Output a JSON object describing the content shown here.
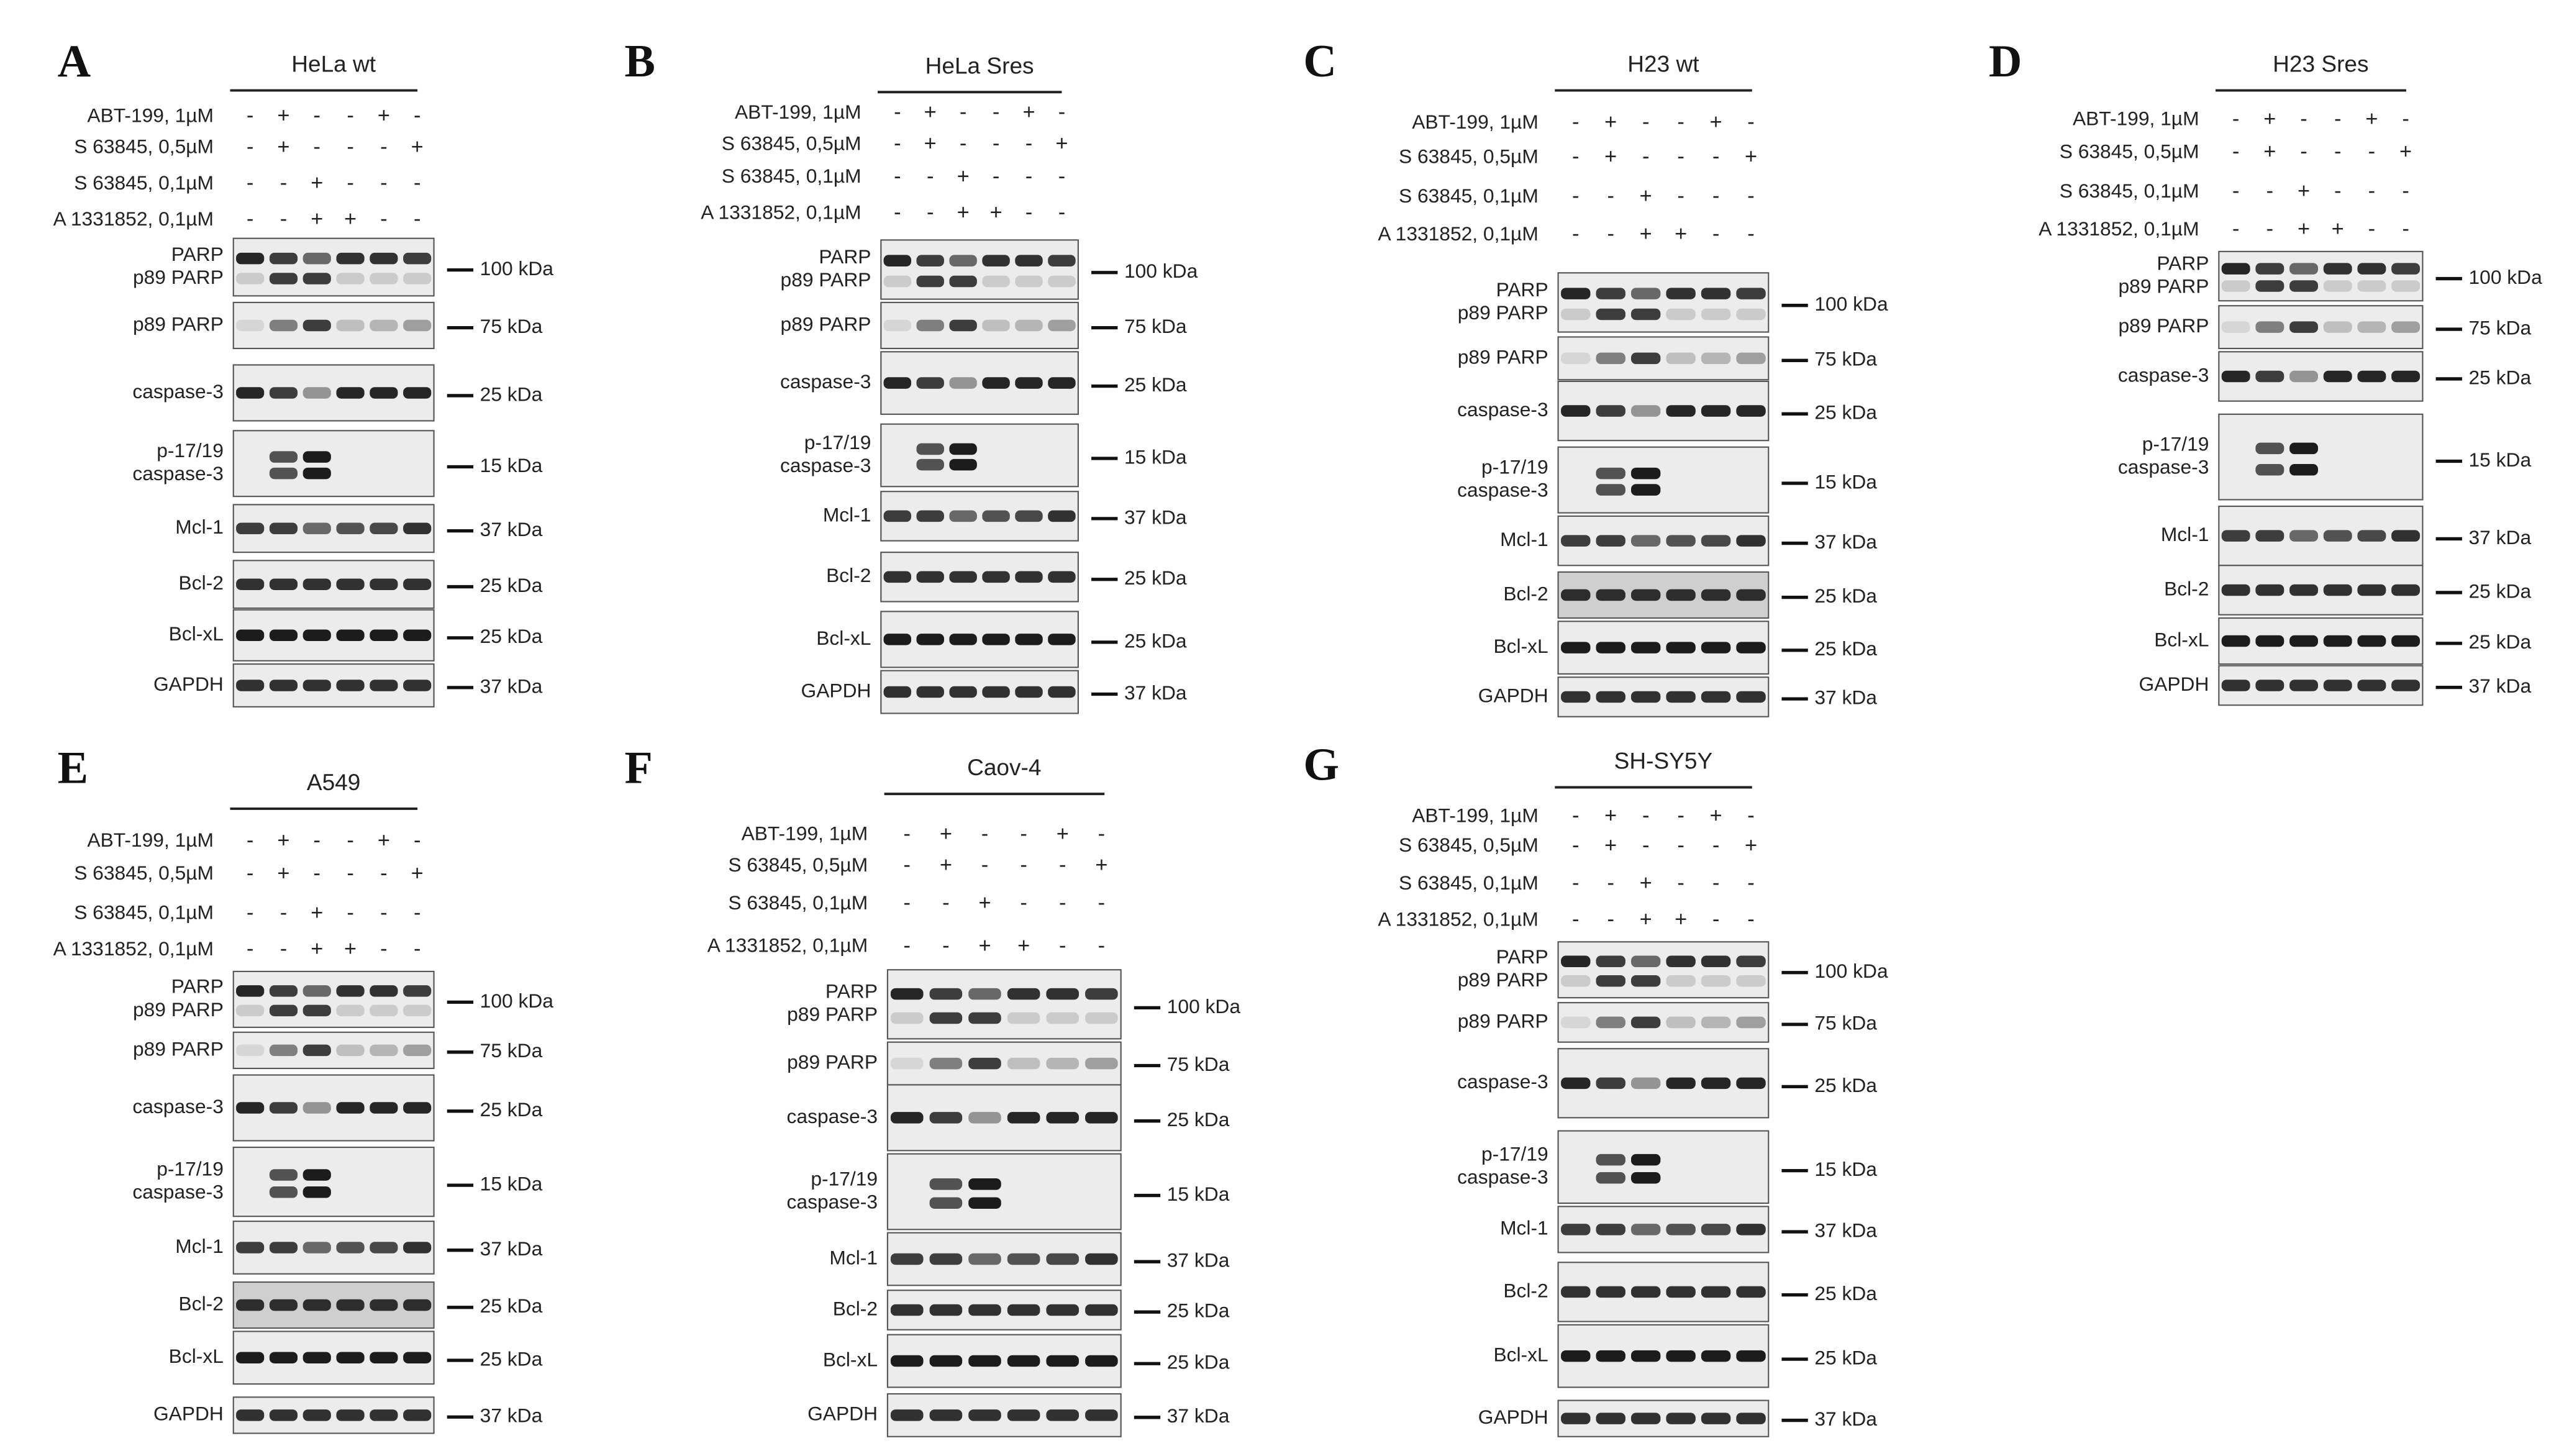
{
  "panels": [
    {
      "letter": "A",
      "title": "HeLa wt",
      "treatments": [
        {
          "label": "ABT-199, 1µM",
          "signs": [
            "-",
            "+",
            "-",
            "-",
            "+",
            "-"
          ]
        },
        {
          "label": "S 63845, 0,5µM",
          "signs": [
            "-",
            "+",
            "-",
            "-",
            "-",
            "+"
          ]
        },
        {
          "label": "S 63845, 0,1µM",
          "signs": [
            "-",
            "-",
            "+",
            "-",
            "-",
            "-"
          ]
        },
        {
          "label": "A 1331852, 0,1µM",
          "signs": [
            "-",
            "-",
            "+",
            "+",
            "-",
            "-"
          ]
        }
      ],
      "blots": [
        {
          "labels": [
            "PARP",
            "p89 PARP"
          ],
          "marker": "100 kDa"
        },
        {
          "labels": [
            "p89 PARP"
          ],
          "marker": "75 kDa"
        },
        {
          "labels": [
            "caspase-3"
          ],
          "marker": "25 kDa"
        },
        {
          "labels": [
            "p-17/19",
            "caspase-3"
          ],
          "marker": "15 kDa"
        },
        {
          "labels": [
            "Mcl-1"
          ],
          "marker": "37 kDa"
        },
        {
          "labels": [
            "Bcl-2"
          ],
          "marker": "25 kDa"
        },
        {
          "labels": [
            "Bcl-xL"
          ],
          "marker": "25 kDa"
        },
        {
          "labels": [
            "GAPDH"
          ],
          "marker": "37 kDa"
        }
      ]
    },
    {
      "letter": "B",
      "title": "HeLa Sres",
      "treatments": [
        {
          "label": "ABT-199, 1µM",
          "signs": [
            "-",
            "+",
            "-",
            "-",
            "+",
            "-"
          ]
        },
        {
          "label": "S 63845, 0,5µM",
          "signs": [
            "-",
            "+",
            "-",
            "-",
            "-",
            "+"
          ]
        },
        {
          "label": "S 63845, 0,1µM",
          "signs": [
            "-",
            "-",
            "+",
            "-",
            "-",
            "-"
          ]
        },
        {
          "label": "A 1331852, 0,1µM",
          "signs": [
            "-",
            "-",
            "+",
            "+",
            "-",
            "-"
          ]
        }
      ],
      "blots": [
        {
          "labels": [
            "PARP",
            "p89 PARP"
          ],
          "marker": "100 kDa"
        },
        {
          "labels": [
            "p89 PARP"
          ],
          "marker": "75 kDa"
        },
        {
          "labels": [
            "caspase-3"
          ],
          "marker": "25 kDa"
        },
        {
          "labels": [
            "p-17/19",
            "caspase-3"
          ],
          "marker": "15 kDa"
        },
        {
          "labels": [
            "Mcl-1"
          ],
          "marker": "37 kDa"
        },
        {
          "labels": [
            "Bcl-2"
          ],
          "marker": "25 kDa"
        },
        {
          "labels": [
            "Bcl-xL"
          ],
          "marker": "25 kDa"
        },
        {
          "labels": [
            "GAPDH"
          ],
          "marker": "37 kDa"
        }
      ]
    },
    {
      "letter": "C",
      "title": "H23 wt",
      "treatments": [
        {
          "label": "ABT-199, 1µM",
          "signs": [
            "-",
            "+",
            "-",
            "-",
            "+",
            "-"
          ]
        },
        {
          "label": "S 63845, 0,5µM",
          "signs": [
            "-",
            "+",
            "-",
            "-",
            "-",
            "+"
          ]
        },
        {
          "label": "S 63845, 0,1µM",
          "signs": [
            "-",
            "-",
            "+",
            "-",
            "-",
            "-"
          ]
        },
        {
          "label": "A 1331852, 0,1µM",
          "signs": [
            "-",
            "-",
            "+",
            "+",
            "-",
            "-"
          ]
        }
      ],
      "blots": [
        {
          "labels": [
            "PARP",
            "p89 PARP"
          ],
          "marker": "100 kDa"
        },
        {
          "labels": [
            "p89 PARP"
          ],
          "marker": "75 kDa"
        },
        {
          "labels": [
            "caspase-3"
          ],
          "marker": "25 kDa"
        },
        {
          "labels": [
            "p-17/19",
            "caspase-3"
          ],
          "marker": "15 kDa"
        },
        {
          "labels": [
            "Mcl-1"
          ],
          "marker": "37 kDa"
        },
        {
          "labels": [
            "Bcl-2"
          ],
          "marker": "25 kDa"
        },
        {
          "labels": [
            "Bcl-xL"
          ],
          "marker": "25 kDa"
        },
        {
          "labels": [
            "GAPDH"
          ],
          "marker": "37 kDa"
        }
      ]
    },
    {
      "letter": "D",
      "title": "H23 Sres",
      "treatments": [
        {
          "label": "ABT-199, 1µM",
          "signs": [
            "-",
            "+",
            "-",
            "-",
            "+",
            "-"
          ]
        },
        {
          "label": "S 63845, 0,5µM",
          "signs": [
            "-",
            "+",
            "-",
            "-",
            "-",
            "+"
          ]
        },
        {
          "label": "S 63845, 0,1µM",
          "signs": [
            "-",
            "-",
            "+",
            "-",
            "-",
            "-"
          ]
        },
        {
          "label": "A 1331852, 0,1µM",
          "signs": [
            "-",
            "-",
            "+",
            "+",
            "-",
            "-"
          ]
        }
      ],
      "blots": [
        {
          "labels": [
            "PARP",
            "p89 PARP"
          ],
          "marker": "100 kDa"
        },
        {
          "labels": [
            "p89 PARP"
          ],
          "marker": "75 kDa"
        },
        {
          "labels": [
            "caspase-3"
          ],
          "marker": "25 kDa"
        },
        {
          "labels": [
            "p-17/19",
            "caspase-3"
          ],
          "marker": "15 kDa"
        },
        {
          "labels": [
            "Mcl-1"
          ],
          "marker": "37 kDa"
        },
        {
          "labels": [
            "Bcl-2"
          ],
          "marker": "25 kDa"
        },
        {
          "labels": [
            "Bcl-xL"
          ],
          "marker": "25 kDa"
        },
        {
          "labels": [
            "GAPDH"
          ],
          "marker": "37 kDa"
        }
      ]
    },
    {
      "letter": "E",
      "title": "A549",
      "treatments": [
        {
          "label": "ABT-199, 1µM",
          "signs": [
            "-",
            "+",
            "-",
            "-",
            "+",
            "-"
          ]
        },
        {
          "label": "S 63845, 0,5µM",
          "signs": [
            "-",
            "+",
            "-",
            "-",
            "-",
            "+"
          ]
        },
        {
          "label": "S 63845, 0,1µM",
          "signs": [
            "-",
            "-",
            "+",
            "-",
            "-",
            "-"
          ]
        },
        {
          "label": "A 1331852, 0,1µM",
          "signs": [
            "-",
            "-",
            "+",
            "+",
            "-",
            "-"
          ]
        }
      ],
      "blots": [
        {
          "labels": [
            "PARP",
            "p89 PARP"
          ],
          "marker": "100 kDa"
        },
        {
          "labels": [
            "p89 PARP"
          ],
          "marker": "75 kDa"
        },
        {
          "labels": [
            "caspase-3"
          ],
          "marker": "25 kDa"
        },
        {
          "labels": [
            "p-17/19",
            "caspase-3"
          ],
          "marker": "15 kDa"
        },
        {
          "labels": [
            "Mcl-1"
          ],
          "marker": "37 kDa"
        },
        {
          "labels": [
            "Bcl-2"
          ],
          "marker": "25 kDa"
        },
        {
          "labels": [
            "Bcl-xL"
          ],
          "marker": "25 kDa"
        },
        {
          "labels": [
            "GAPDH"
          ],
          "marker": "37 kDa"
        }
      ]
    },
    {
      "letter": "F",
      "title": "Caov-4",
      "treatments": [
        {
          "label": "ABT-199, 1µM",
          "signs": [
            "-",
            "+",
            "-",
            "-",
            "+",
            "-"
          ]
        },
        {
          "label": "S 63845, 0,5µM",
          "signs": [
            "-",
            "+",
            "-",
            "-",
            "-",
            "+"
          ]
        },
        {
          "label": "S 63845, 0,1µM",
          "signs": [
            "-",
            "-",
            "+",
            "-",
            "-",
            "-"
          ]
        },
        {
          "label": "A 1331852, 0,1µM",
          "signs": [
            "-",
            "-",
            "+",
            "+",
            "-",
            "-"
          ]
        }
      ],
      "blots": [
        {
          "labels": [
            "PARP",
            "p89 PARP"
          ],
          "marker": "100 kDa"
        },
        {
          "labels": [
            "p89 PARP"
          ],
          "marker": "75 kDa"
        },
        {
          "labels": [
            "caspase-3"
          ],
          "marker": "25 kDa"
        },
        {
          "labels": [
            "p-17/19",
            "caspase-3"
          ],
          "marker": "15 kDa"
        },
        {
          "labels": [
            "Mcl-1"
          ],
          "marker": "37 kDa"
        },
        {
          "labels": [
            "Bcl-2"
          ],
          "marker": "25 kDa"
        },
        {
          "labels": [
            "Bcl-xL"
          ],
          "marker": "25 kDa"
        },
        {
          "labels": [
            "GAPDH"
          ],
          "marker": "37 kDa"
        }
      ]
    },
    {
      "letter": "G",
      "title": "SH-SY5Y",
      "treatments": [
        {
          "label": "ABT-199, 1µM",
          "signs": [
            "-",
            "+",
            "-",
            "-",
            "+",
            "-"
          ]
        },
        {
          "label": "S 63845, 0,5µM",
          "signs": [
            "-",
            "+",
            "-",
            "-",
            "-",
            "+"
          ]
        },
        {
          "label": "S 63845, 0,1µM",
          "signs": [
            "-",
            "-",
            "+",
            "-",
            "-",
            "-"
          ]
        },
        {
          "label": "A 1331852, 0,1µM",
          "signs": [
            "-",
            "-",
            "+",
            "+",
            "-",
            "-"
          ]
        }
      ],
      "blots": [
        {
          "labels": [
            "PARP",
            "p89 PARP"
          ],
          "marker": "100 kDa"
        },
        {
          "labels": [
            "p89 PARP"
          ],
          "marker": "75 kDa"
        },
        {
          "labels": [
            "caspase-3"
          ],
          "marker": "25 kDa"
        },
        {
          "labels": [
            "p-17/19",
            "caspase-3"
          ],
          "marker": "15 kDa"
        },
        {
          "labels": [
            "Mcl-1"
          ],
          "marker": "37 kDa"
        },
        {
          "labels": [
            "Bcl-2"
          ],
          "marker": "25 kDa"
        },
        {
          "labels": [
            "Bcl-xL"
          ],
          "marker": "25 kDa"
        },
        {
          "labels": [
            "GAPDH"
          ],
          "marker": "37 kDa"
        }
      ]
    }
  ]
}
